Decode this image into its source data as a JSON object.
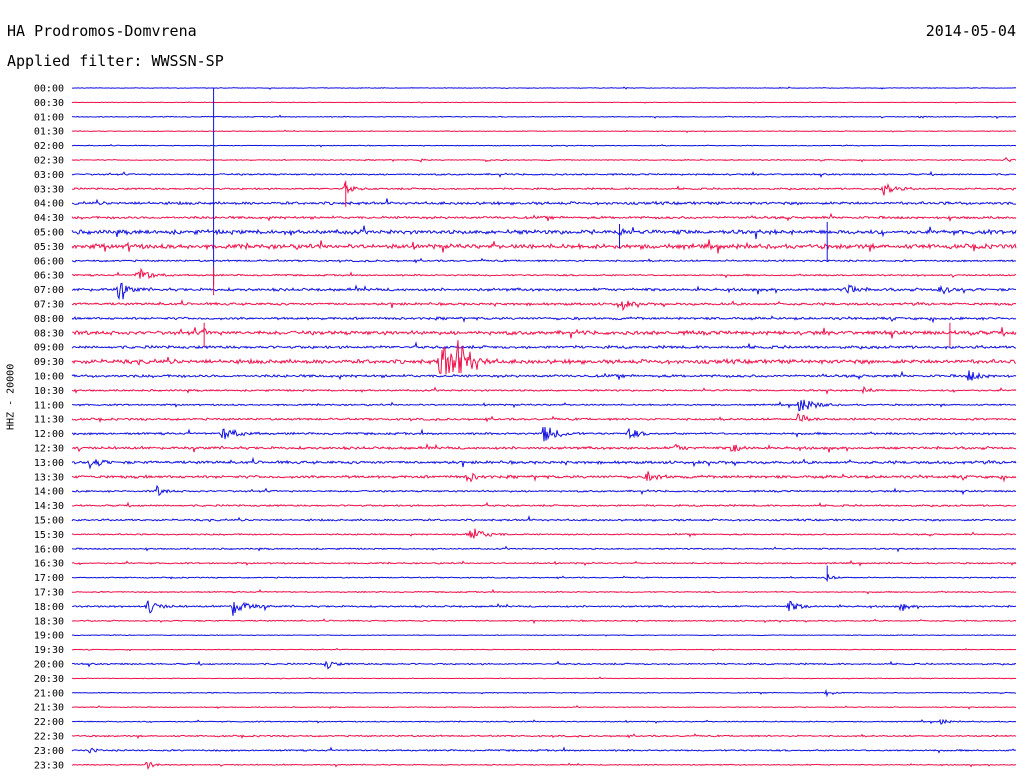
{
  "header": {
    "station": "HA Prodromos-Domvrena",
    "date": "2014-05-04",
    "filter": "Applied filter: WWSSN-SP"
  },
  "channel_label": "HHZ - 20000",
  "colors": {
    "blue": "#1010e0",
    "red": "#f0104a"
  },
  "chart_data": {
    "type": "line",
    "description_type": "helicorder",
    "row_interval_minutes": 30,
    "ylabel": "HHZ - 20000",
    "row_labels": [
      "00:00",
      "00:30",
      "01:00",
      "01:30",
      "02:00",
      "02:30",
      "03:00",
      "03:30",
      "04:00",
      "04:30",
      "05:00",
      "05:30",
      "06:00",
      "06:30",
      "07:00",
      "07:30",
      "08:00",
      "08:30",
      "09:00",
      "09:30",
      "10:00",
      "10:30",
      "11:00",
      "11:30",
      "12:00",
      "12:30",
      "13:00",
      "13:30",
      "14:00",
      "14:30",
      "15:00",
      "15:30",
      "16:00",
      "16:30",
      "17:00",
      "17:30",
      "18:00",
      "18:30",
      "19:00",
      "19:30",
      "20:00",
      "20:30",
      "21:00",
      "21:30",
      "22:00",
      "22:30",
      "23:00",
      "23:30"
    ],
    "row_noise": [
      0.4,
      0.3,
      0.5,
      0.4,
      0.4,
      0.6,
      0.9,
      1.0,
      1.6,
      1.4,
      2.4,
      2.6,
      1.0,
      0.9,
      1.6,
      1.4,
      1.4,
      2.2,
      1.6,
      2.4,
      1.5,
      1.0,
      0.9,
      1.2,
      1.2,
      1.5,
      1.6,
      1.6,
      1.0,
      1.0,
      1.1,
      0.8,
      0.8,
      0.8,
      0.6,
      0.7,
      1.0,
      0.7,
      0.4,
      0.4,
      0.9,
      0.4,
      0.5,
      0.5,
      0.6,
      0.9,
      0.9,
      0.6
    ],
    "events": [
      [
        2,
        0.9,
        2
      ],
      [
        5,
        0.37,
        2
      ],
      [
        5,
        0.44,
        2
      ],
      [
        5,
        0.99,
        3
      ],
      [
        7,
        0.29,
        5
      ],
      [
        7,
        0.86,
        7
      ],
      [
        10,
        0.58,
        3
      ],
      [
        11,
        0.06,
        3
      ],
      [
        13,
        0.07,
        8
      ],
      [
        14,
        0.05,
        4
      ],
      [
        14,
        0.05,
        6
      ],
      [
        14,
        0.82,
        6
      ],
      [
        14,
        0.92,
        5
      ],
      [
        15,
        0.58,
        6
      ],
      [
        17,
        0.14,
        3
      ],
      [
        17,
        0.95,
        3
      ],
      [
        19,
        0.39,
        18
      ],
      [
        19,
        0.41,
        10
      ],
      [
        20,
        0.95,
        6
      ],
      [
        21,
        0.84,
        4
      ],
      [
        22,
        0.77,
        9
      ],
      [
        23,
        0.77,
        6
      ],
      [
        24,
        0.16,
        8
      ],
      [
        24,
        0.5,
        9
      ],
      [
        24,
        0.59,
        6
      ],
      [
        25,
        0.64,
        4
      ],
      [
        25,
        0.7,
        5
      ],
      [
        26,
        0.02,
        6
      ],
      [
        27,
        0.42,
        5
      ],
      [
        27,
        0.61,
        6
      ],
      [
        28,
        0.09,
        5
      ],
      [
        31,
        0.42,
        9
      ],
      [
        34,
        0.8,
        4
      ],
      [
        36,
        0.08,
        7
      ],
      [
        36,
        0.17,
        9
      ],
      [
        36,
        0.76,
        6
      ],
      [
        36,
        0.88,
        4
      ],
      [
        40,
        0.27,
        5
      ],
      [
        42,
        0.8,
        4
      ],
      [
        44,
        0.92,
        4
      ],
      [
        46,
        0.02,
        3
      ],
      [
        47,
        0.08,
        4
      ]
    ],
    "spikes": [
      [
        4,
        0.15,
        58,
        140
      ],
      [
        7,
        0.29,
        8,
        18
      ],
      [
        10,
        0.58,
        8,
        16
      ],
      [
        10,
        0.8,
        10,
        30
      ],
      [
        13,
        0.15,
        8,
        20
      ],
      [
        17,
        0.14,
        10,
        14
      ],
      [
        17,
        0.93,
        10,
        14
      ],
      [
        34,
        0.8,
        12,
        4
      ]
    ]
  }
}
